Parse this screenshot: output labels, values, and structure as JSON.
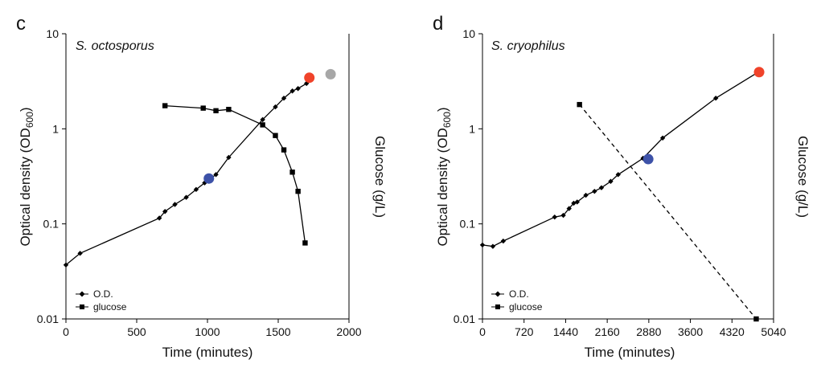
{
  "chart_data": [
    {
      "type": "line",
      "panel_letter": "c",
      "title": "S. octosporus",
      "xlabel": "Time (minutes)",
      "ylabel_main": "Optical density (OD",
      "ylabel_sub": "600",
      "ylabel_end": ")",
      "y2label": "Glucose (g/L)",
      "xlim": [
        0,
        2000
      ],
      "ylim": [
        0.01,
        10
      ],
      "y_scale": "log",
      "x_ticks": [
        0,
        500,
        1000,
        1500,
        2000
      ],
      "x_tick_labels": [
        "0",
        "500",
        "1000",
        "1500",
        "2000"
      ],
      "y_ticks": [
        0.01,
        0.1,
        1,
        10
      ],
      "y_tick_labels": [
        "0.01",
        "0.1",
        "1",
        "10"
      ],
      "legend_position": "bottom-left",
      "series": [
        {
          "name": "O.D.",
          "marker": "diamond",
          "line_style": "solid",
          "x": [
            0,
            100,
            660,
            700,
            770,
            850,
            920,
            980,
            1060,
            1150,
            1390,
            1480,
            1540,
            1600,
            1640,
            1700
          ],
          "y": [
            0.037,
            0.049,
            0.115,
            0.135,
            0.16,
            0.19,
            0.23,
            0.27,
            0.33,
            0.5,
            1.25,
            1.7,
            2.1,
            2.5,
            2.65,
            3.0
          ]
        },
        {
          "name": "glucose",
          "marker": "square",
          "line_style": "solid",
          "x": [
            700,
            970,
            1060,
            1150,
            1390,
            1480,
            1540,
            1600,
            1640,
            1690
          ],
          "y": [
            1.75,
            1.65,
            1.55,
            1.6,
            1.1,
            0.85,
            0.6,
            0.35,
            0.22,
            0.063
          ]
        }
      ],
      "highlight_points": [
        {
          "x": 1010,
          "y": 0.3,
          "color": "#3d52a8"
        },
        {
          "x": 1720,
          "y": 3.45,
          "color": "#f0432a"
        },
        {
          "x": 1870,
          "y": 3.75,
          "color": "#a7a7a7"
        }
      ]
    },
    {
      "type": "line",
      "panel_letter": "d",
      "title": "S. cryophilus",
      "xlabel": "Time (minutes)",
      "ylabel_main": "Optical density (OD",
      "ylabel_sub": "600",
      "ylabel_end": ")",
      "y2label": "Glucose (g/L)",
      "xlim": [
        0,
        5040
      ],
      "ylim": [
        0.01,
        10
      ],
      "y_scale": "log",
      "x_ticks": [
        0,
        720,
        1440,
        2160,
        2880,
        3600,
        4320,
        5040
      ],
      "x_tick_labels": [
        "0",
        "720",
        "1440",
        "2160",
        "2880",
        "3600",
        "4320",
        "5040"
      ],
      "y_ticks": [
        0.01,
        0.1,
        1,
        10
      ],
      "y_tick_labels": [
        "0.01",
        "0.1",
        "1",
        "10"
      ],
      "legend_position": "bottom-left",
      "series": [
        {
          "name": "O.D.",
          "marker": "diamond",
          "line_style": "solid",
          "x": [
            0,
            180,
            360,
            1250,
            1400,
            1500,
            1580,
            1640,
            1790,
            1940,
            2060,
            2220,
            2350,
            2780,
            3120,
            4040,
            4760
          ],
          "y": [
            0.06,
            0.058,
            0.066,
            0.118,
            0.123,
            0.145,
            0.165,
            0.17,
            0.2,
            0.22,
            0.24,
            0.28,
            0.33,
            0.49,
            0.8,
            2.1,
            3.9
          ]
        },
        {
          "name": "glucose",
          "marker": "square",
          "line_style": "dashed",
          "x": [
            1680,
            4740
          ],
          "y": [
            1.8,
            0.01
          ]
        }
      ],
      "highlight_points": [
        {
          "x": 2870,
          "y": 0.48,
          "color": "#3d52a8"
        },
        {
          "x": 4790,
          "y": 3.95,
          "color": "#f0432a"
        }
      ]
    }
  ]
}
